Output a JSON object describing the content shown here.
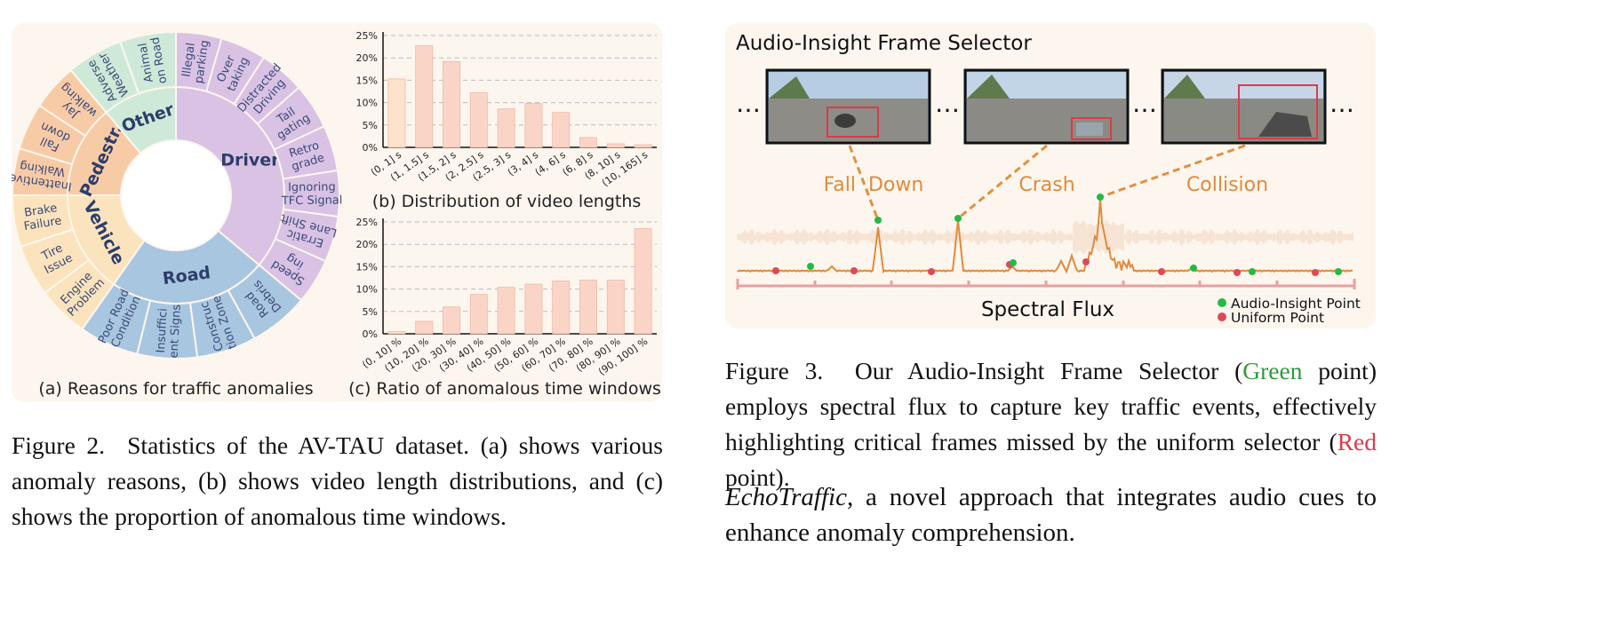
{
  "fig2": {
    "sunburst": {
      "groups": [
        {
          "name": "Driver",
          "color": "#d9c2e4",
          "start": 0,
          "end": 130,
          "items": [
            "Illegal\nparking",
            "Over\ntaking",
            "Distracted\nDriving",
            "Tail\ngating",
            "Retro\ngrade",
            "Ignoring\nTFC Signal",
            "Erratic\nLane Shift",
            "Speed\ning"
          ]
        },
        {
          "name": "Road",
          "color": "#a9c6e0",
          "start": 130,
          "end": 215,
          "items": [
            "Road\nDebris",
            "Construc\ntion Zone",
            "Insuffici\nent Signs",
            "Poor Road\nCondition"
          ]
        },
        {
          "name": "Vehicle",
          "color": "#fbe3bd",
          "start": 215,
          "end": 270,
          "items": [
            "Engine\nProblem",
            "Tire\nIssue",
            "Brake\nFailure"
          ]
        },
        {
          "name": "Pedestr.",
          "color": "#f8cba7",
          "start": 270,
          "end": 320,
          "items": [
            "Inattentive\nWalking",
            "Fall\ndown",
            "Jay\nwalking"
          ]
        },
        {
          "name": "Other",
          "color": "#cfe9d8",
          "start": 320,
          "end": 360,
          "items": [
            "Adverse\nWeather",
            "Animal\non Road"
          ]
        }
      ],
      "caption": "(a) Reasons for traffic anomalies"
    },
    "chart_b": {
      "caption": "(b) Distribution of video lengths",
      "categories": [
        "(0, 1] s",
        "(1, 1.5] s",
        "(1.5, 2] s",
        "(2, 2.5] s",
        "(2.5, 3] s",
        "(3, 4] s",
        "(4, 6] s",
        "(6, 8] s",
        "(8, 10] s",
        "(10, 165] s"
      ],
      "values": [
        15.3,
        22.7,
        19.2,
        12.2,
        8.6,
        9.8,
        7.8,
        2.2,
        0.8,
        0.6
      ],
      "ticks": [
        "0%",
        "5%",
        "10%",
        "15%",
        "20%",
        "25%"
      ]
    },
    "chart_c": {
      "caption": "(c) Ratio of anomalous time windows",
      "categories": [
        "(0, 10] %",
        "(10, 20] %",
        "(20, 30] %",
        "(30, 40] %",
        "(40, 50] %",
        "(50, 60] %",
        "(60, 70] %",
        "(70, 80] %",
        "(80, 90] %",
        "(90, 100] %"
      ],
      "values": [
        0.5,
        2.8,
        6.0,
        8.8,
        10.4,
        11.1,
        11.8,
        12.0,
        12.0,
        23.5
      ],
      "ticks": [
        "0%",
        "5%",
        "10%",
        "15%",
        "20%",
        "25%"
      ]
    },
    "caption_label": "Figure 2.",
    "caption_text": "Statistics of the AV-TAU dataset. (a) shows various anomaly reasons, (b) shows video length distributions, and (c) shows the proportion of anomalous time windows."
  },
  "fig3": {
    "title": "Audio-Insight Frame Selector",
    "events": [
      "Fall  Down",
      "Crash",
      "Collision"
    ],
    "ellipsis": "…",
    "axis_label": "Spectral Flux",
    "legend": [
      {
        "label": "Audio-Insight Point",
        "color": "#22bb44"
      },
      {
        "label": "Uniform Point",
        "color": "#e04858"
      }
    ],
    "caption_label": "Figure 3.",
    "caption_pre": "Our Audio-Insight Frame Selector (",
    "caption_green": "Green",
    "caption_mid": " point) employs spectral flux to capture key traffic events, effectively highlighting critical frames missed by the uniform selector (",
    "caption_red": "Red",
    "caption_post": " point)."
  },
  "body": {
    "italic": "EchoTraffic",
    "text": ", a novel approach that integrates audio cues to enhance anomaly comprehension."
  },
  "chart_data": [
    {
      "type": "bar",
      "title": "(b) Distribution of video lengths",
      "categories": [
        "(0, 1] s",
        "(1, 1.5] s",
        "(1.5, 2] s",
        "(2, 2.5] s",
        "(2.5, 3] s",
        "(3, 4] s",
        "(4, 6] s",
        "(6, 8] s",
        "(8, 10] s",
        "(10, 165] s"
      ],
      "values": [
        15.3,
        22.7,
        19.2,
        12.2,
        8.6,
        9.8,
        7.8,
        2.2,
        0.8,
        0.6
      ],
      "ylim": [
        0,
        25
      ]
    },
    {
      "type": "bar",
      "title": "(c) Ratio of anomalous time windows",
      "categories": [
        "(0, 10] %",
        "(10, 20] %",
        "(20, 30] %",
        "(30, 40] %",
        "(40, 50] %",
        "(50, 60] %",
        "(60, 70] %",
        "(70, 80] %",
        "(80, 90] %",
        "(90, 100] %"
      ],
      "values": [
        0.5,
        2.8,
        6.0,
        8.8,
        10.4,
        11.1,
        11.8,
        12.0,
        12.0,
        23.5
      ],
      "ylim": [
        0,
        25
      ]
    }
  ]
}
